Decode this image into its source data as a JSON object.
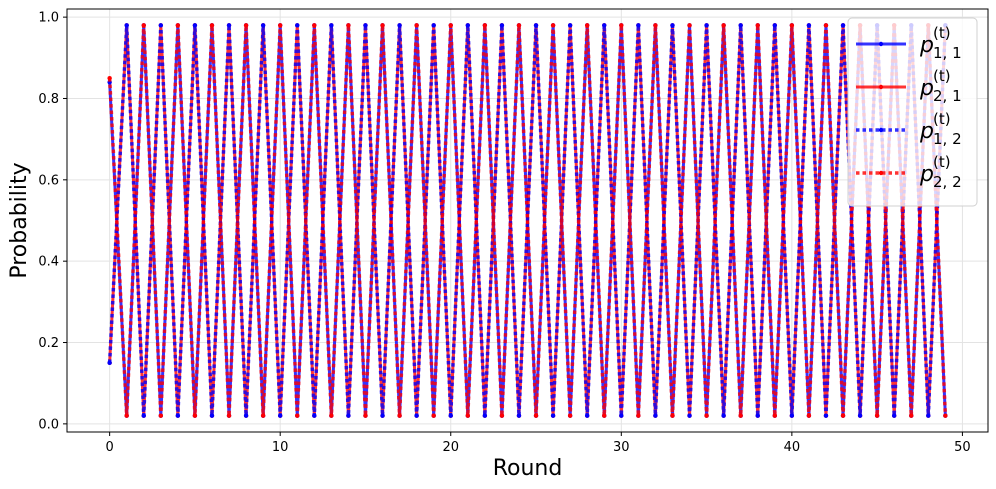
{
  "chart_data": {
    "type": "line",
    "title": "",
    "xlabel": "Round",
    "ylabel": "Probability",
    "xlim": [
      -2.5,
      51.5
    ],
    "ylim": [
      -0.02,
      1.02
    ],
    "xticks": [
      0,
      10,
      20,
      30,
      40,
      50
    ],
    "yticks": [
      0.0,
      0.2,
      0.4,
      0.6,
      0.8,
      1.0
    ],
    "xtick_labels": [
      "0",
      "10",
      "20",
      "30",
      "40",
      "50"
    ],
    "ytick_labels": [
      "0.0",
      "0.2",
      "0.4",
      "0.6",
      "0.8",
      "1.0"
    ],
    "grid": true,
    "legend_position": "top-right",
    "x": [
      0,
      1,
      2,
      3,
      4,
      5,
      6,
      7,
      8,
      9,
      10,
      11,
      12,
      13,
      14,
      15,
      16,
      17,
      18,
      19,
      20,
      21,
      22,
      23,
      24,
      25,
      26,
      27,
      28,
      29,
      30,
      31,
      32,
      33,
      34,
      35,
      36,
      37,
      38,
      39,
      40,
      41,
      42,
      43,
      44,
      45,
      46,
      47,
      48,
      49
    ],
    "series": [
      {
        "name": "p_{1,1}^{(t)}",
        "legend_base": "p",
        "legend_sub": "1, 1",
        "legend_sup": "(t)",
        "color": "#0000ff",
        "style": "solid",
        "values": [
          0.84,
          0.02,
          0.98,
          0.02,
          0.98,
          0.02,
          0.98,
          0.02,
          0.98,
          0.02,
          0.98,
          0.02,
          0.98,
          0.02,
          0.98,
          0.02,
          0.98,
          0.02,
          0.98,
          0.02,
          0.98,
          0.02,
          0.98,
          0.02,
          0.98,
          0.02,
          0.98,
          0.02,
          0.98,
          0.02,
          0.98,
          0.02,
          0.98,
          0.02,
          0.98,
          0.02,
          0.98,
          0.02,
          0.98,
          0.02,
          0.98,
          0.02,
          0.98,
          0.02,
          0.98,
          0.02,
          0.98,
          0.02,
          0.98,
          0.02
        ]
      },
      {
        "name": "p_{2,1}^{(t)}",
        "legend_base": "p",
        "legend_sub": "2, 1",
        "legend_sup": "(t)",
        "color": "#ff0000",
        "style": "solid",
        "values": [
          0.15,
          0.98,
          0.02,
          0.98,
          0.02,
          0.98,
          0.02,
          0.98,
          0.02,
          0.98,
          0.02,
          0.98,
          0.02,
          0.98,
          0.02,
          0.98,
          0.02,
          0.98,
          0.02,
          0.98,
          0.02,
          0.98,
          0.02,
          0.98,
          0.02,
          0.98,
          0.02,
          0.98,
          0.02,
          0.98,
          0.02,
          0.98,
          0.02,
          0.98,
          0.02,
          0.98,
          0.02,
          0.98,
          0.02,
          0.98,
          0.02,
          0.98,
          0.02,
          0.98,
          0.02,
          0.98,
          0.02,
          0.98,
          0.02,
          0.98
        ]
      },
      {
        "name": "p_{1,2}^{(t)}",
        "legend_base": "p",
        "legend_sub": "1, 2",
        "legend_sup": "(t)",
        "color": "#0000ff",
        "style": "dotted",
        "values": [
          0.15,
          0.98,
          0.02,
          0.98,
          0.02,
          0.98,
          0.02,
          0.98,
          0.02,
          0.98,
          0.02,
          0.98,
          0.02,
          0.98,
          0.02,
          0.98,
          0.02,
          0.98,
          0.02,
          0.98,
          0.02,
          0.98,
          0.02,
          0.98,
          0.02,
          0.98,
          0.02,
          0.98,
          0.02,
          0.98,
          0.02,
          0.98,
          0.02,
          0.98,
          0.02,
          0.98,
          0.02,
          0.98,
          0.02,
          0.98,
          0.02,
          0.98,
          0.02,
          0.98,
          0.02,
          0.98,
          0.02,
          0.98,
          0.02,
          0.98
        ]
      },
      {
        "name": "p_{2,2}^{(t)}",
        "legend_base": "p",
        "legend_sub": "2, 2",
        "legend_sup": "(t)",
        "color": "#ff0000",
        "style": "dotted",
        "values": [
          0.85,
          0.02,
          0.98,
          0.02,
          0.98,
          0.02,
          0.98,
          0.02,
          0.98,
          0.02,
          0.98,
          0.02,
          0.98,
          0.02,
          0.98,
          0.02,
          0.98,
          0.02,
          0.98,
          0.02,
          0.98,
          0.02,
          0.98,
          0.02,
          0.98,
          0.02,
          0.98,
          0.02,
          0.98,
          0.02,
          0.98,
          0.02,
          0.98,
          0.02,
          0.98,
          0.02,
          0.98,
          0.02,
          0.98,
          0.02,
          0.98,
          0.02,
          0.98,
          0.02,
          0.98,
          0.02,
          0.98,
          0.02,
          0.98,
          0.02
        ]
      }
    ]
  }
}
